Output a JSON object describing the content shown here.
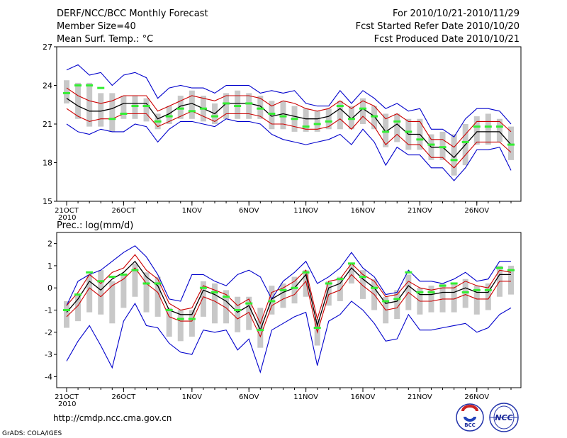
{
  "header": {
    "title": "DERF/NCC/BCC Monthly Forecast",
    "member_size": "Member Size=40",
    "variable_top": "Mean Surf. Temp.: °C",
    "period": "For 2010/10/21-2010/11/29",
    "fcst_started": "Fcst Started Refer Date 2010/10/20",
    "fcst_produced": "Fcst Produced Date 2010/10/21"
  },
  "footer": {
    "url": "http://cmdp.ncc.cma.gov.cn",
    "grads_credit": "GrADS: COLA/IGES",
    "logo_left_text": "BCC",
    "logo_right_text": "NCC"
  },
  "colors": {
    "ensemble_envelope": "#0000cc",
    "spread_band": "#cc0000",
    "ensemble_mean": "#000000",
    "box": "#c8c8c8",
    "climatology": "#33ee33"
  },
  "chart_data": [
    {
      "type": "line",
      "title": "Mean Surf. Temp.: °C",
      "xlabel": "",
      "ylabel": "",
      "ylim": [
        15,
        27
      ],
      "yticks": [
        "15",
        "18",
        "21",
        "24",
        "27"
      ],
      "xtick_labels": [
        "21OCT",
        "26OCT",
        "1NOV",
        "6NOV",
        "11NOV",
        "16NOV",
        "21NOV",
        "26NOV"
      ],
      "xtick_days": [
        0,
        5,
        11,
        16,
        21,
        26,
        31,
        36
      ],
      "year_label": "2010",
      "x_days": [
        0,
        1,
        2,
        3,
        4,
        5,
        6,
        7,
        8,
        9,
        10,
        11,
        12,
        13,
        14,
        15,
        16,
        17,
        18,
        19,
        20,
        21,
        22,
        23,
        24,
        25,
        26,
        27,
        28,
        29,
        30,
        31,
        32,
        33,
        34,
        35,
        36,
        37,
        38,
        39
      ],
      "series": [
        {
          "name": "ensemble max",
          "values": [
            25.2,
            25.6,
            24.8,
            25.0,
            24.0,
            24.8,
            25.0,
            24.6,
            23.0,
            23.8,
            24.0,
            23.8,
            23.8,
            23.4,
            24.0,
            24.0,
            24.0,
            23.4,
            23.6,
            23.4,
            23.6,
            22.6,
            22.4,
            22.4,
            23.6,
            22.6,
            23.6,
            23.0,
            22.2,
            22.6,
            22.0,
            22.2,
            20.6,
            20.6,
            20.0,
            21.4,
            22.2,
            22.2,
            22.0,
            21.0
          ]
        },
        {
          "name": "spread upper",
          "values": [
            23.8,
            23.2,
            22.8,
            22.6,
            22.8,
            23.2,
            23.2,
            23.2,
            22.0,
            22.4,
            22.8,
            23.2,
            23.0,
            22.8,
            23.2,
            23.2,
            23.2,
            23.0,
            22.4,
            22.8,
            22.6,
            22.2,
            22.0,
            22.2,
            22.8,
            22.2,
            22.8,
            22.4,
            21.4,
            21.8,
            21.2,
            21.2,
            19.8,
            19.8,
            19.2,
            20.2,
            21.2,
            21.2,
            21.2,
            20.4
          ]
        },
        {
          "name": "ensemble mean",
          "values": [
            23.0,
            22.4,
            22.0,
            22.0,
            22.2,
            22.6,
            22.6,
            22.6,
            21.4,
            21.8,
            22.4,
            22.6,
            22.2,
            21.8,
            22.6,
            22.6,
            22.6,
            22.4,
            21.6,
            21.8,
            21.6,
            21.4,
            21.4,
            21.6,
            22.2,
            21.4,
            22.2,
            21.6,
            20.4,
            21.0,
            20.2,
            20.2,
            19.2,
            19.2,
            18.4,
            19.4,
            20.4,
            20.4,
            20.4,
            19.4
          ]
        },
        {
          "name": "spread lower",
          "values": [
            22.2,
            21.6,
            21.2,
            21.4,
            21.4,
            21.8,
            21.8,
            21.8,
            20.8,
            21.2,
            21.6,
            22.0,
            21.6,
            21.2,
            21.8,
            21.8,
            21.8,
            21.6,
            21.0,
            21.0,
            20.8,
            20.6,
            20.6,
            20.8,
            21.4,
            20.6,
            21.6,
            20.8,
            19.4,
            20.2,
            19.4,
            19.4,
            18.4,
            18.4,
            17.6,
            18.6,
            19.6,
            19.6,
            19.6,
            18.8
          ]
        },
        {
          "name": "ensemble min",
          "values": [
            21.0,
            20.4,
            20.2,
            20.6,
            20.4,
            20.4,
            21.0,
            20.8,
            19.6,
            20.6,
            21.2,
            21.2,
            21.0,
            20.8,
            21.4,
            21.2,
            21.2,
            21.0,
            20.2,
            19.8,
            19.6,
            19.4,
            19.6,
            19.8,
            20.2,
            19.4,
            20.6,
            19.6,
            17.8,
            19.2,
            18.6,
            18.6,
            17.6,
            17.6,
            16.6,
            17.6,
            19.0,
            19.0,
            19.2,
            17.4
          ]
        },
        {
          "name": "box upper",
          "values": [
            24.4,
            24.2,
            24.2,
            23.4,
            23.4,
            23.2,
            23.2,
            23.0,
            21.8,
            22.4,
            23.2,
            23.6,
            23.2,
            22.6,
            23.4,
            23.6,
            23.4,
            23.2,
            22.8,
            22.8,
            22.4,
            22.2,
            22.0,
            22.2,
            22.8,
            22.4,
            23.0,
            22.4,
            21.8,
            21.8,
            21.4,
            21.4,
            20.2,
            20.4,
            20.2,
            21.0,
            21.6,
            21.8,
            21.4,
            20.8
          ]
        },
        {
          "name": "box lower",
          "values": [
            22.6,
            21.4,
            20.8,
            20.8,
            20.4,
            21.4,
            21.4,
            21.2,
            20.6,
            21.0,
            21.4,
            21.4,
            21.2,
            21.0,
            21.4,
            21.4,
            21.4,
            21.4,
            20.6,
            20.6,
            20.4,
            20.4,
            20.4,
            20.6,
            20.6,
            20.6,
            21.0,
            20.6,
            19.2,
            19.6,
            19.0,
            19.0,
            18.2,
            18.2,
            17.0,
            17.8,
            19.4,
            19.4,
            19.6,
            18.2
          ]
        },
        {
          "name": "climatology",
          "values": [
            23.4,
            24.0,
            24.0,
            23.8,
            21.4,
            21.8,
            22.4,
            22.4,
            21.2,
            21.6,
            22.2,
            22.0,
            22.2,
            21.6,
            22.6,
            22.4,
            22.6,
            22.2,
            21.8,
            21.6,
            21.4,
            20.8,
            21.0,
            21.2,
            22.4,
            21.4,
            22.2,
            21.6,
            20.4,
            21.2,
            20.4,
            19.8,
            19.4,
            19.2,
            18.2,
            19.6,
            20.8,
            20.8,
            20.8,
            19.4
          ]
        }
      ]
    },
    {
      "type": "line",
      "title": "Prec.: log(mm/d)",
      "xlabel": "",
      "ylabel": "",
      "ylim": [
        -4.5,
        2.5
      ],
      "yticks": [
        "-4",
        "-3",
        "-2",
        "-1",
        "0",
        "1",
        "2"
      ],
      "xtick_labels": [
        "21OCT",
        "26OCT",
        "1NOV",
        "6NOV",
        "11NOV",
        "16NOV",
        "21NOV",
        "26NOV"
      ],
      "xtick_days": [
        0,
        5,
        11,
        16,
        21,
        26,
        31,
        36
      ],
      "year_label": "2010",
      "x_days": [
        0,
        1,
        2,
        3,
        4,
        5,
        6,
        7,
        8,
        9,
        10,
        11,
        12,
        13,
        14,
        15,
        16,
        17,
        18,
        19,
        20,
        21,
        22,
        23,
        24,
        25,
        26,
        27,
        28,
        29,
        30,
        31,
        32,
        33,
        34,
        35,
        36,
        37,
        38,
        39
      ],
      "series": [
        {
          "name": "ensemble max",
          "values": [
            -0.8,
            0.3,
            0.6,
            0.8,
            1.2,
            1.6,
            1.9,
            1.4,
            0.6,
            -0.5,
            -0.6,
            0.6,
            0.6,
            0.3,
            0.1,
            0.6,
            0.8,
            0.5,
            -0.5,
            0.3,
            0.7,
            1.2,
            0.2,
            0.5,
            0.9,
            1.6,
            0.9,
            0.5,
            -0.3,
            -0.2,
            0.8,
            0.3,
            0.3,
            0.2,
            0.4,
            0.7,
            0.3,
            0.4,
            1.2,
            1.2
          ]
        },
        {
          "name": "spread upper",
          "values": [
            -0.8,
            -0.2,
            0.6,
            0.2,
            0.7,
            0.9,
            1.5,
            0.8,
            0.4,
            -0.7,
            -1.0,
            -0.9,
            0.1,
            -0.1,
            -0.3,
            -0.8,
            -0.5,
            -1.6,
            -0.2,
            0.0,
            0.3,
            0.8,
            -1.4,
            0.3,
            0.4,
            1.1,
            0.6,
            0.3,
            -0.4,
            -0.3,
            0.3,
            0.0,
            -0.1,
            0.0,
            0.0,
            0.3,
            0.1,
            0.0,
            0.8,
            0.7
          ]
        },
        {
          "name": "ensemble mean",
          "values": [
            -1.1,
            -0.5,
            0.3,
            -0.1,
            0.4,
            0.7,
            1.2,
            0.5,
            0.1,
            -1.0,
            -1.2,
            -1.2,
            -0.1,
            -0.3,
            -0.6,
            -1.1,
            -0.8,
            -1.9,
            -0.5,
            -0.2,
            0.0,
            0.6,
            -1.7,
            0.0,
            0.2,
            0.9,
            0.4,
            0.0,
            -0.7,
            -0.6,
            0.1,
            -0.3,
            -0.3,
            -0.2,
            -0.2,
            0.0,
            -0.2,
            -0.2,
            0.6,
            0.6
          ]
        },
        {
          "name": "spread lower",
          "values": [
            -1.3,
            -0.8,
            0.0,
            -0.4,
            0.1,
            0.4,
            0.9,
            0.2,
            -0.2,
            -1.3,
            -1.5,
            -1.5,
            -0.4,
            -0.6,
            -0.9,
            -1.4,
            -1.1,
            -2.2,
            -0.8,
            -0.5,
            -0.3,
            0.3,
            -2.0,
            -0.3,
            -0.1,
            0.6,
            0.1,
            -0.3,
            -1.0,
            -0.9,
            -0.2,
            -0.6,
            -0.6,
            -0.5,
            -0.5,
            -0.3,
            -0.5,
            -0.5,
            0.3,
            0.3
          ]
        },
        {
          "name": "ensemble min",
          "values": [
            -3.3,
            -2.4,
            -1.7,
            -2.6,
            -3.6,
            -1.5,
            -0.7,
            -1.7,
            -1.8,
            -2.5,
            -2.9,
            -3.0,
            -1.9,
            -2.0,
            -1.9,
            -2.8,
            -2.3,
            -3.8,
            -1.9,
            -1.6,
            -1.3,
            -1.1,
            -3.5,
            -1.5,
            -1.2,
            -0.6,
            -1.0,
            -1.6,
            -2.4,
            -2.3,
            -1.2,
            -1.9,
            -1.9,
            -1.8,
            -1.7,
            -1.6,
            -2.0,
            -1.8,
            -1.2,
            -0.9
          ]
        },
        {
          "name": "box upper",
          "values": [
            -0.6,
            -0.3,
            0.6,
            0.8,
            0.3,
            0.6,
            1.1,
            0.7,
            0.5,
            -0.9,
            -1.0,
            -1.0,
            0.3,
            0.2,
            -0.1,
            -0.4,
            -0.4,
            -0.9,
            0.1,
            0.2,
            0.5,
            0.8,
            -1.4,
            0.3,
            0.5,
            1.1,
            0.8,
            0.4,
            -0.4,
            -0.1,
            0.6,
            0.0,
            0.1,
            0.2,
            0.2,
            0.4,
            0.1,
            0.2,
            1.0,
            1.0
          ]
        },
        {
          "name": "box lower",
          "values": [
            -1.8,
            -1.5,
            -1.1,
            -1.2,
            -1.6,
            -0.9,
            -0.4,
            -1.1,
            -1.3,
            -2.2,
            -2.4,
            -2.2,
            -1.3,
            -1.6,
            -1.6,
            -2.0,
            -1.9,
            -2.7,
            -1.2,
            -0.9,
            -0.7,
            -0.4,
            -2.6,
            -0.8,
            -0.6,
            0.2,
            -0.5,
            -1.0,
            -1.6,
            -1.4,
            -1.0,
            -1.2,
            -1.1,
            -1.1,
            -1.1,
            -0.9,
            -1.2,
            -1.0,
            -0.4,
            -0.3
          ]
        },
        {
          "name": "climatology",
          "values": [
            -1.0,
            -0.3,
            0.7,
            0.3,
            0.5,
            0.6,
            0.8,
            0.2,
            0.2,
            -1.0,
            -1.4,
            -1.4,
            0.0,
            -0.2,
            -0.4,
            -1.0,
            -0.7,
            -1.9,
            -0.6,
            -0.1,
            0.0,
            0.7,
            -1.8,
            0.2,
            0.4,
            1.1,
            0.5,
            0.0,
            -0.6,
            -0.5,
            0.7,
            -0.2,
            -0.2,
            0.1,
            0.2,
            -0.2,
            -0.1,
            -0.1,
            0.9,
            0.8
          ]
        }
      ]
    }
  ]
}
